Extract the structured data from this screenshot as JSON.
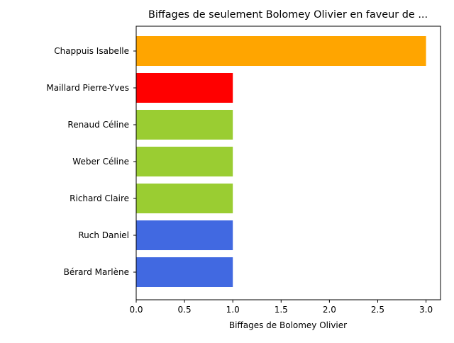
{
  "chart_data": {
    "type": "bar",
    "orientation": "horizontal",
    "title": "Biffages de seulement Bolomey Olivier en faveur de ...",
    "xlabel": "Biffages de Bolomey Olivier",
    "ylabel": "",
    "xlim": [
      0,
      3.15
    ],
    "xticks": [
      0.0,
      0.5,
      1.0,
      1.5,
      2.0,
      2.5,
      3.0
    ],
    "xtick_labels": [
      "0.0",
      "0.5",
      "1.0",
      "1.5",
      "2.0",
      "2.5",
      "3.0"
    ],
    "grid": false,
    "legend": "none",
    "categories": [
      "Chappuis Isabelle",
      "Maillard Pierre-Yves",
      "Renaud Céline",
      "Weber Céline",
      "Richard Claire",
      "Ruch Daniel",
      "Bérard Marlène"
    ],
    "values": [
      3,
      1,
      1,
      1,
      1,
      1,
      1
    ],
    "colors": [
      "#ffa500",
      "#ff0000",
      "#9acd32",
      "#9acd32",
      "#9acd32",
      "#4169e1",
      "#4169e1"
    ]
  }
}
